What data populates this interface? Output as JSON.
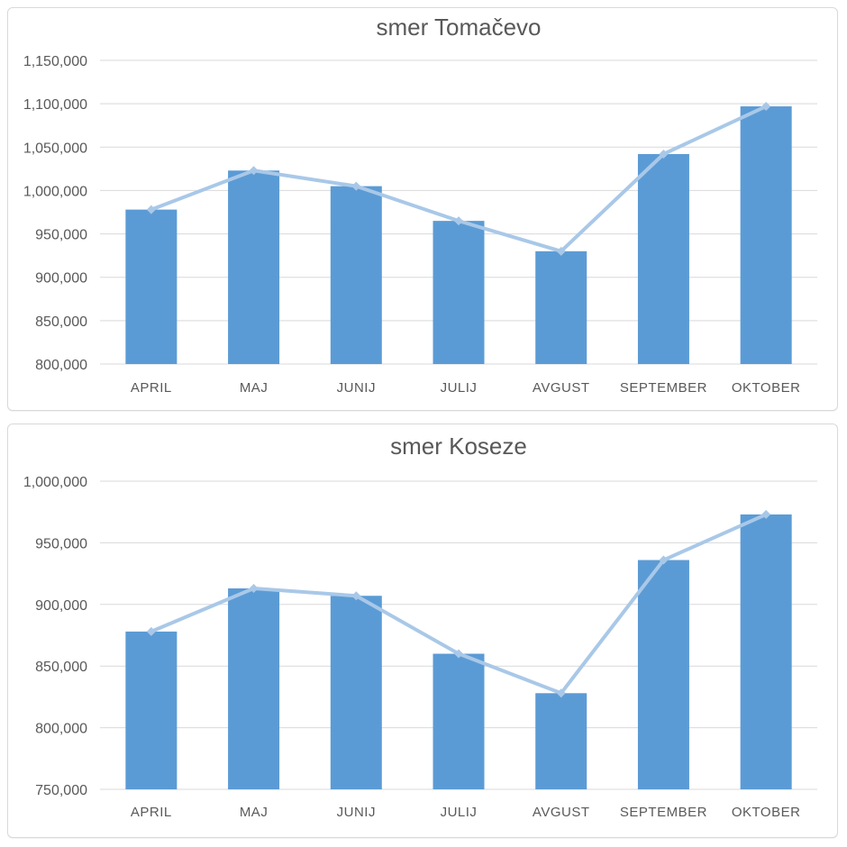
{
  "page": {
    "background": "#ffffff"
  },
  "chart_data": [
    {
      "type": "bar",
      "subtype": "bar-with-line-overlay",
      "title": "smer Tomačevo",
      "categories": [
        "APRIL",
        "MAJ",
        "JUNIJ",
        "JULIJ",
        "AVGUST",
        "SEPTEMBER",
        "OKTOBER"
      ],
      "series": [
        {
          "name": "bars",
          "type": "bar",
          "values": [
            978000,
            1023000,
            1005000,
            965000,
            930000,
            1042000,
            1097000
          ]
        },
        {
          "name": "trend-line",
          "type": "line",
          "values": [
            978000,
            1023000,
            1005000,
            965000,
            930000,
            1042000,
            1097000
          ]
        }
      ],
      "xlabel": "",
      "ylabel": "",
      "ylim": [
        800000,
        1150000
      ],
      "ytick_step": 50000,
      "ytick_labels": [
        "1,150,000",
        "1,100,000",
        "1,050,000",
        "1,000,000",
        "950,000",
        "900,000",
        "850,000",
        "800,000"
      ],
      "grid": true,
      "legend": "none",
      "colors": {
        "bar": "#5b9bd5",
        "line": "#a9c8e8",
        "grid": "#d9d9d9",
        "text": "#595959",
        "border": "#d9d9d9"
      }
    },
    {
      "type": "bar",
      "subtype": "bar-with-line-overlay",
      "title": "smer Koseze",
      "categories": [
        "APRIL",
        "MAJ",
        "JUNIJ",
        "JULIJ",
        "AVGUST",
        "SEPTEMBER",
        "OKTOBER"
      ],
      "series": [
        {
          "name": "bars",
          "type": "bar",
          "values": [
            878000,
            913000,
            907000,
            860000,
            828000,
            936000,
            973000
          ]
        },
        {
          "name": "trend-line",
          "type": "line",
          "values": [
            878000,
            913000,
            907000,
            860000,
            828000,
            936000,
            973000
          ]
        }
      ],
      "xlabel": "",
      "ylabel": "",
      "ylim": [
        750000,
        1000000
      ],
      "ytick_step": 50000,
      "ytick_labels": [
        "1,000,000",
        "950,000",
        "900,000",
        "850,000",
        "800,000",
        "750,000"
      ],
      "grid": true,
      "legend": "none",
      "colors": {
        "bar": "#5b9bd5",
        "line": "#a9c8e8",
        "grid": "#d9d9d9",
        "text": "#595959",
        "border": "#d9d9d9"
      }
    }
  ]
}
